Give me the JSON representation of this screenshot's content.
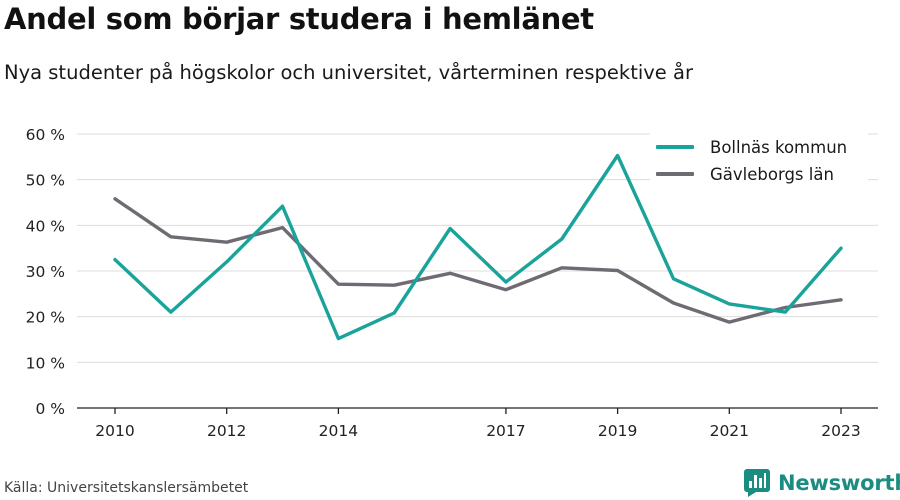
{
  "title": "Andel som börjar studera i hemlänet",
  "subtitle": "Nya studenter på högskolor och universitet, vårterminen respektive år",
  "source": "Källa: Universitetskanslersämbetet",
  "brand": {
    "name": "Newsworthy",
    "icon": "newsworthy-logo-icon",
    "color": "#1a8c82"
  },
  "chart_data": {
    "type": "line",
    "title": "",
    "xlabel": "",
    "ylabel": "",
    "x": [
      2010,
      2011,
      2012,
      2013,
      2014,
      2015,
      2016,
      2017,
      2018,
      2019,
      2020,
      2021,
      2022,
      2023
    ],
    "x_tick_values": [
      2010,
      2012,
      2014,
      2017,
      2019,
      2021,
      2023
    ],
    "x_tick_labels": [
      "2010",
      "2012",
      "2014",
      "2017",
      "2019",
      "2021",
      "2023"
    ],
    "xlim": [
      2010,
      2023
    ],
    "ylim": [
      0,
      60
    ],
    "y_ticks": [
      0,
      10,
      20,
      30,
      40,
      50,
      60
    ],
    "y_tick_labels": [
      "0 %",
      "10 %",
      "20 %",
      "30 %",
      "40 %",
      "50 %",
      "60 %"
    ],
    "grid": true,
    "legend_position": "top-right",
    "series": [
      {
        "name": "Bollnäs kommun",
        "color": "#1aa39a",
        "values": [
          32.5,
          21.0,
          32.0,
          44.2,
          15.2,
          20.8,
          39.3,
          27.6,
          37.0,
          55.3,
          28.3,
          22.8,
          21.0,
          35.0
        ]
      },
      {
        "name": "Gävleborgs län",
        "color": "#6e6b73",
        "values": [
          45.8,
          37.5,
          36.3,
          39.5,
          27.1,
          26.9,
          29.5,
          25.9,
          30.7,
          30.1,
          23.0,
          18.8,
          22.0,
          23.7
        ]
      }
    ]
  }
}
